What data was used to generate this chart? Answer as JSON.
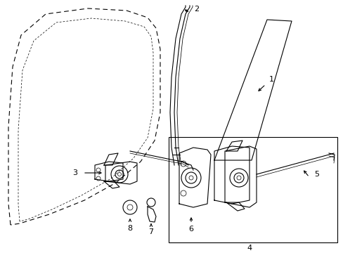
{
  "bg_color": "#ffffff",
  "line_color": "#000000",
  "fig_width": 4.89,
  "fig_height": 3.6,
  "dpi": 100,
  "lw": 0.8,
  "tlw": 0.5
}
